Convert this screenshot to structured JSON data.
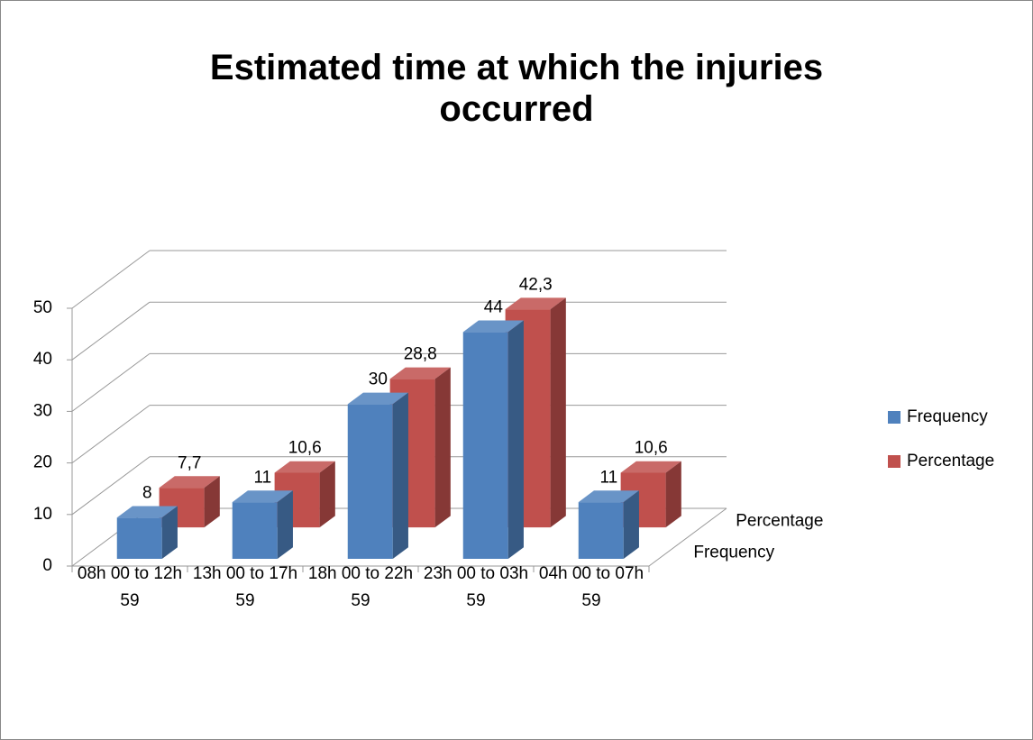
{
  "chart_data": {
    "type": "bar",
    "three_d": true,
    "title": "Estimated time at which the injuries occurred",
    "categories": [
      "08h 00 to 12h 59",
      "13h 00 to 17h 59",
      "18h 00 to 22h 59",
      "23h 00 to 03h 59",
      "04h 00 to 07h 59"
    ],
    "series": [
      {
        "name": "Frequency",
        "color": "#4f81bd",
        "values": [
          8,
          11,
          30,
          44,
          11
        ]
      },
      {
        "name": "Percentage",
        "color": "#c0504d",
        "values": [
          7.7,
          10.6,
          28.8,
          42.3,
          10.6
        ],
        "value_labels": [
          "7,7",
          "10,6",
          "28,8",
          "42,3",
          "10,6"
        ]
      }
    ],
    "ylim": [
      0,
      50
    ],
    "yticks": [
      0,
      10,
      20,
      30,
      40,
      50
    ],
    "grid": true,
    "legend": "right"
  }
}
